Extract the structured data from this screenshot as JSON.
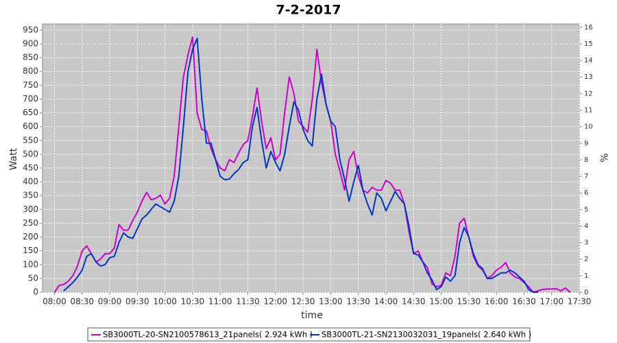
{
  "chart_data": {
    "type": "line",
    "title": "7-2-2017",
    "x_label": "time",
    "y_label": "Watt",
    "y2_label": "%",
    "x": [
      "08:00",
      "08:05",
      "08:10",
      "08:15",
      "08:20",
      "08:25",
      "08:30",
      "08:35",
      "08:40",
      "08:45",
      "08:50",
      "08:55",
      "09:00",
      "09:05",
      "09:10",
      "09:15",
      "09:20",
      "09:25",
      "09:30",
      "09:35",
      "09:40",
      "09:45",
      "09:50",
      "09:55",
      "10:00",
      "10:05",
      "10:10",
      "10:15",
      "10:20",
      "10:25",
      "10:30",
      "10:35",
      "10:40",
      "10:45",
      "10:50",
      "10:55",
      "11:00",
      "11:05",
      "11:10",
      "11:15",
      "11:20",
      "11:25",
      "11:30",
      "11:35",
      "11:40",
      "11:45",
      "11:50",
      "11:55",
      "12:00",
      "12:05",
      "12:10",
      "12:15",
      "12:20",
      "12:25",
      "12:30",
      "12:35",
      "12:40",
      "12:45",
      "12:50",
      "12:55",
      "13:00",
      "13:05",
      "13:10",
      "13:15",
      "13:20",
      "13:25",
      "13:30",
      "13:35",
      "13:40",
      "13:45",
      "13:50",
      "13:55",
      "14:00",
      "14:05",
      "14:10",
      "14:15",
      "14:20",
      "14:25",
      "14:30",
      "14:35",
      "14:40",
      "14:45",
      "14:50",
      "14:55",
      "15:00",
      "15:05",
      "15:10",
      "15:15",
      "15:20",
      "15:25",
      "15:30",
      "15:35",
      "15:40",
      "15:45",
      "15:50",
      "15:55",
      "16:00",
      "16:05",
      "16:10",
      "16:15",
      "16:20",
      "16:25",
      "16:30",
      "16:35",
      "16:40",
      "16:45",
      "16:50",
      "16:55",
      "17:00",
      "17:05",
      "17:10",
      "17:15",
      "17:20"
    ],
    "series": [
      {
        "name": "SB3000TL-20-SN2100578613_21panels( 2.924 kWh )",
        "color": "#cc00cc",
        "values": [
          0,
          25,
          28,
          40,
          60,
          95,
          150,
          168,
          140,
          110,
          120,
          140,
          140,
          160,
          245,
          225,
          225,
          260,
          290,
          330,
          362,
          335,
          340,
          352,
          320,
          340,
          420,
          600,
          780,
          860,
          925,
          650,
          590,
          585,
          520,
          480,
          450,
          440,
          480,
          470,
          505,
          535,
          550,
          635,
          740,
          620,
          520,
          560,
          480,
          500,
          650,
          780,
          720,
          620,
          600,
          580,
          700,
          880,
          760,
          680,
          620,
          500,
          440,
          370,
          480,
          510,
          420,
          370,
          360,
          380,
          370,
          370,
          405,
          395,
          370,
          370,
          320,
          220,
          140,
          150,
          110,
          90,
          30,
          20,
          25,
          70,
          60,
          130,
          250,
          268,
          200,
          130,
          95,
          80,
          50,
          60,
          80,
          90,
          108,
          70,
          55,
          50,
          35,
          20,
          0,
          5,
          10,
          12,
          12,
          13,
          5,
          15,
          0
        ]
      },
      {
        "name": "SB3000TL-21-SN2130032031_19panels( 2.640 kWh )",
        "color": "#0033cc",
        "values": [
          null,
          null,
          5,
          20,
          35,
          55,
          80,
          130,
          140,
          110,
          95,
          100,
          125,
          130,
          180,
          215,
          200,
          195,
          230,
          265,
          280,
          300,
          320,
          310,
          300,
          290,
          330,
          420,
          600,
          800,
          880,
          920,
          700,
          540,
          540,
          480,
          420,
          408,
          410,
          430,
          445,
          470,
          480,
          600,
          670,
          550,
          450,
          510,
          470,
          440,
          500,
          600,
          690,
          660,
          590,
          550,
          530,
          700,
          790,
          680,
          620,
          600,
          480,
          410,
          330,
          400,
          460,
          370,
          320,
          280,
          360,
          340,
          295,
          330,
          365,
          340,
          320,
          240,
          140,
          135,
          110,
          70,
          45,
          10,
          20,
          55,
          40,
          60,
          180,
          235,
          200,
          140,
          100,
          85,
          50,
          50,
          60,
          70,
          70,
          80,
          70,
          55,
          40,
          10,
          0,
          0,
          null,
          null,
          null,
          null,
          null,
          null,
          null
        ]
      }
    ],
    "xlim": [
      "07:47",
      "17:30"
    ],
    "xticks": [
      "08:00",
      "08:30",
      "09:00",
      "09:30",
      "10:00",
      "10:30",
      "11:00",
      "11:30",
      "12:00",
      "12:30",
      "13:00",
      "13:30",
      "14:00",
      "14:30",
      "15:00",
      "15:30",
      "16:00",
      "16:30",
      "17:00",
      "17:30"
    ],
    "ylim": [
      0,
      972
    ],
    "yticks": [
      0,
      50,
      100,
      150,
      200,
      250,
      300,
      350,
      400,
      450,
      500,
      550,
      600,
      650,
      700,
      750,
      800,
      850,
      900,
      950
    ],
    "y2lim": [
      0,
      16.2
    ],
    "y2ticks": [
      0,
      1,
      2,
      3,
      4,
      5,
      6,
      7,
      8,
      9,
      10,
      11,
      12,
      13,
      14,
      15,
      16
    ],
    "grid": true,
    "legend": "bottom"
  }
}
